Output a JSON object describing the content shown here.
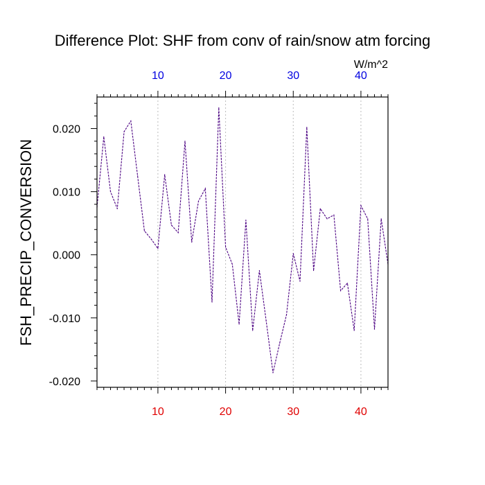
{
  "chart_data": {
    "type": "line",
    "title": "Difference Plot: SHF from conv of rain/snow atm forcing",
    "ylabel": "FSH_PRECIP_CONVERSION",
    "units_label": "W/m^2",
    "xlim": [
      1,
      44
    ],
    "ylim": [
      -0.021,
      0.025
    ],
    "x_ticks": [
      10,
      20,
      30,
      40
    ],
    "x_tick_labels": [
      "10",
      "20",
      "30",
      "40"
    ],
    "y_ticks": [
      -0.02,
      -0.01,
      0.0,
      0.01,
      0.02
    ],
    "y_tick_labels": [
      "-0.020",
      "-0.010",
      "0.000",
      "0.010",
      "0.020"
    ],
    "bottom_axis_color": "#e00000",
    "top_axis_color": "#0000e0",
    "grid": "vertical dotted at major x ticks",
    "series": [
      {
        "color": "#4b0082",
        "x": [
          1,
          2,
          3,
          4,
          5,
          6,
          7,
          8,
          9,
          10,
          11,
          12,
          13,
          14,
          15,
          16,
          17,
          18,
          19,
          20,
          21,
          22,
          23,
          24,
          25,
          26,
          27,
          28,
          29,
          30,
          31,
          32,
          33,
          34,
          35,
          36,
          37,
          38,
          39,
          40,
          41,
          42,
          43,
          44
        ],
        "values": [
          0.0075,
          0.0187,
          0.01,
          0.0073,
          0.0195,
          0.0212,
          0.0125,
          0.0038,
          0.0025,
          0.001,
          0.0127,
          0.0047,
          0.0035,
          0.018,
          0.002,
          0.0085,
          0.0105,
          -0.0075,
          0.0233,
          0.0012,
          -0.0015,
          -0.011,
          0.0055,
          -0.012,
          -0.0025,
          -0.0105,
          -0.0187,
          -0.014,
          -0.0095,
          0.0002,
          -0.0042,
          0.0202,
          -0.0025,
          0.0073,
          0.0057,
          0.0063,
          -0.0057,
          -0.0045,
          -0.012,
          0.0078,
          0.0057,
          -0.0118,
          0.0057,
          -0.0015
        ]
      }
    ]
  }
}
